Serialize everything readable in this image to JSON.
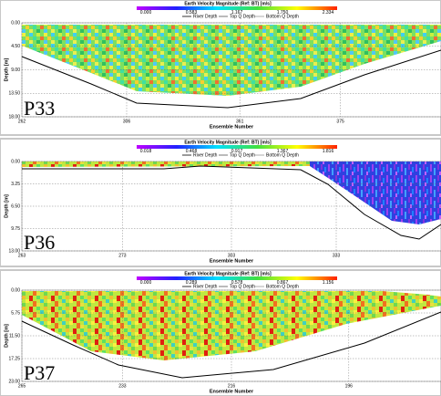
{
  "panels": [
    {
      "title": "Earth Velocity Magnitude (Ref: BT) [m/s]",
      "colorbar_ticks": [
        "0.000",
        "0.583",
        "1.167",
        "1.750",
        "2.334"
      ],
      "legend": [
        "River Depth",
        "Top Q Depth",
        "Bottom Q Depth"
      ],
      "y_label": "Depth [m]",
      "y_ticks": [
        "0.00",
        "4.50",
        "9.00",
        "13.50",
        "18.00"
      ],
      "x_label": "Ensemble Number",
      "x_ticks": [
        "262",
        "306",
        "361",
        "375"
      ],
      "panel_label": "P33"
    },
    {
      "title": "Earth Velocity Magnitude (Ref: BT) [m/s]",
      "colorbar_ticks": [
        "0.018",
        "0.468",
        "0.917",
        "1.367",
        "1.816"
      ],
      "legend": [
        "River Depth",
        "Top Q Depth",
        "Bottom Q Depth"
      ],
      "y_label": "Depth [m]",
      "y_ticks": [
        "0.00",
        "3.25",
        "6.50",
        "9.75",
        "13.00"
      ],
      "x_label": "Ensemble Number",
      "x_ticks": [
        "263",
        "273",
        "303",
        "333"
      ],
      "panel_label": "P36"
    },
    {
      "title": "Earth Velocity Magnitude (Ref: BT) [m/s]",
      "colorbar_ticks": [
        "0.000",
        "0.289",
        "0.578",
        "0.867",
        "1.156"
      ],
      "legend": [
        "River Depth",
        "Top Q Depth",
        "Bottom Q Depth"
      ],
      "y_label": "Depth [m]",
      "y_ticks": [
        "0.00",
        "5.75",
        "11.50",
        "17.25",
        "23.00"
      ],
      "x_label": "Ensemble Number",
      "x_ticks": [
        "265",
        "233",
        "216",
        "196"
      ],
      "panel_label": "P37"
    }
  ]
}
